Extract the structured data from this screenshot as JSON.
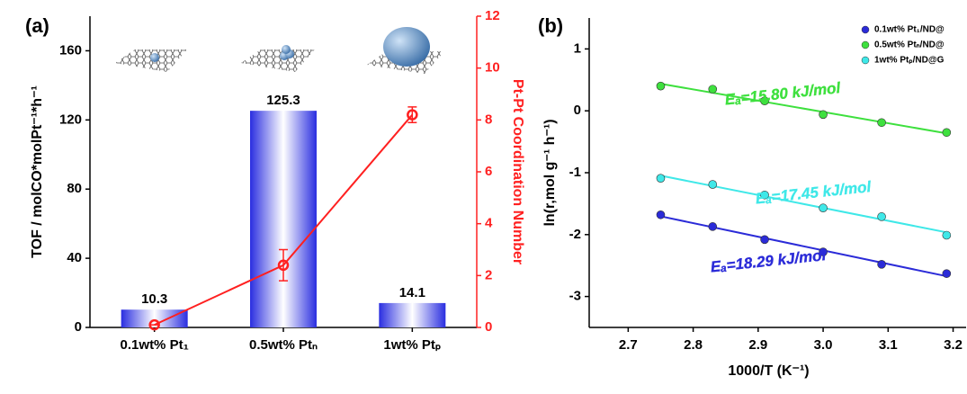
{
  "chart_data": [
    {
      "type": "bar",
      "panel_label": "(a)",
      "categories": [
        "0.1wt% Pt₁",
        "0.5wt% Ptₙ",
        "1wt% Ptₚ"
      ],
      "values": [
        10.3,
        125.3,
        14.1
      ],
      "color": "#2a2ee0",
      "ylabel": "TOF / molCO*molPt⁻¹*h⁻¹",
      "ylim": [
        0,
        180
      ],
      "yticks": [
        0,
        40,
        80,
        120,
        160
      ],
      "y2lim": [
        0,
        12
      ],
      "y2ticks": [
        0,
        2,
        4,
        6,
        8,
        10,
        12
      ],
      "series": [
        {
          "name": "Pt-Pt Coordination Number",
          "type": "line",
          "axis": "y2",
          "color": "#ff2020",
          "values": [
            0.1,
            2.4,
            8.2
          ],
          "errors": [
            0,
            0.6,
            0.3
          ]
        }
      ]
    },
    {
      "type": "scatter",
      "panel_label": "(b)",
      "xlabel": "1000/T (K⁻¹)",
      "ylabel": "ln(r,mol g⁻¹ h⁻¹)",
      "x": [
        2.75,
        2.83,
        2.91,
        3.0,
        3.09,
        3.19
      ],
      "xlim": [
        2.64,
        3.22
      ],
      "xticks": [
        2.7,
        2.8,
        2.9,
        {
          "value": 3.0,
          "label": "3.0"
        },
        3.1,
        3.2
      ],
      "ylim": [
        -3.5,
        1.5
      ],
      "yticks": [
        -3,
        -2,
        -1,
        0,
        1
      ],
      "fit": true,
      "series": [
        {
          "name": "0.1wt% Pt₁/ND@",
          "color": "#2b2bd8",
          "values": [
            -1.68,
            -1.87,
            -2.08,
            -2.28,
            -2.48,
            -2.63
          ],
          "annotation": "Eₐ=18.29 kJ/mol"
        },
        {
          "name": "0.5wt% Ptₙ/ND@",
          "color": "#3ee03e",
          "values": [
            0.4,
            0.35,
            0.16,
            -0.06,
            -0.19,
            -0.35
          ],
          "annotation": "Eₐ=15.80 kJ/mol"
        },
        {
          "name": "1wt% Ptₚ/ND@G",
          "color": "#3fe8e8",
          "values": [
            -1.09,
            -1.19,
            -1.36,
            -1.57,
            -1.71,
            -2.01
          ],
          "annotation": "Eₐ=17.45 kJ/mol"
        }
      ]
    }
  ]
}
